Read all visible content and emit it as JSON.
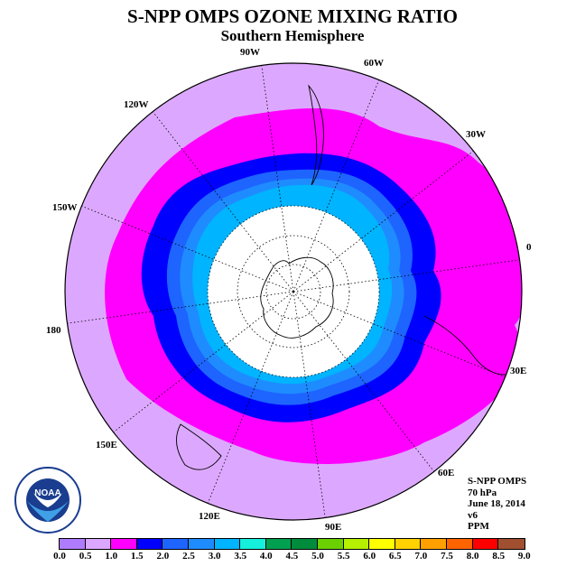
{
  "header": {
    "title": "S-NPP OMPS OZONE MIXING RATIO",
    "subtitle": "Southern Hemisphere"
  },
  "map": {
    "projection": "south polar stereographic",
    "background_fill": "#dca8ff",
    "data_mask_color": "#ffffff",
    "longitude_labels": [
      "90W",
      "60W",
      "30W",
      "0",
      "30E",
      "60E",
      "90E",
      "120E",
      "150E",
      "180",
      "150W",
      "120W"
    ],
    "bands": [
      {
        "range": "1.0-1.5",
        "color": "#ff00ff"
      },
      {
        "range": "1.5-2.0",
        "color": "#0000ff"
      },
      {
        "range": "2.0-2.5",
        "color": "#1e64ff"
      },
      {
        "range": "2.5-3.0",
        "color": "#1e8cff"
      },
      {
        "range": "3.0-3.5",
        "color": "#00b4ff"
      }
    ]
  },
  "info": {
    "instrument": "S-NPP OMPS",
    "level": "70 hPa",
    "date": "June 18, 2014",
    "version": "v6",
    "unit": "PPM"
  },
  "logo": {
    "icon": "noaa-logo",
    "text": "NOAA"
  },
  "colorbar": {
    "ticks": [
      "0.0",
      "0.5",
      "1.0",
      "1.5",
      "2.0",
      "2.5",
      "3.0",
      "3.5",
      "4.0",
      "4.5",
      "5.0",
      "5.5",
      "6.0",
      "6.5",
      "7.0",
      "7.5",
      "8.0",
      "8.5",
      "9.0"
    ],
    "colors": [
      "#b07cff",
      "#dca8ff",
      "#ff00ff",
      "#0000ff",
      "#1e64ff",
      "#1e8cff",
      "#00b4ff",
      "#14f0dc",
      "#00a050",
      "#008c3c",
      "#6ad000",
      "#b4f000",
      "#ffff00",
      "#ffd200",
      "#ffa000",
      "#ff6400",
      "#ff0000",
      "#a05030"
    ]
  }
}
